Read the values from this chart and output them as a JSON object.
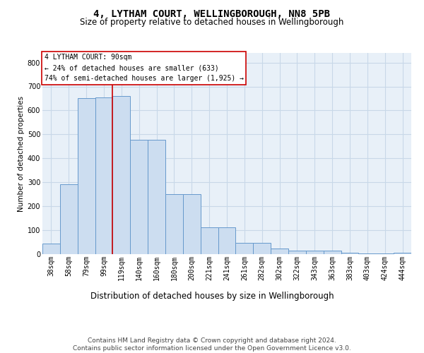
{
  "title": "4, LYTHAM COURT, WELLINGBOROUGH, NN8 5PB",
  "subtitle": "Size of property relative to detached houses in Wellingborough",
  "xlabel": "Distribution of detached houses by size in Wellingborough",
  "ylabel": "Number of detached properties",
  "categories": [
    "38sqm",
    "58sqm",
    "79sqm",
    "99sqm",
    "119sqm",
    "140sqm",
    "160sqm",
    "180sqm",
    "200sqm",
    "221sqm",
    "241sqm",
    "261sqm",
    "282sqm",
    "302sqm",
    "322sqm",
    "343sqm",
    "363sqm",
    "383sqm",
    "403sqm",
    "424sqm",
    "444sqm"
  ],
  "values": [
    43,
    293,
    650,
    655,
    660,
    477,
    477,
    250,
    250,
    113,
    113,
    48,
    48,
    25,
    14,
    14,
    14,
    7,
    3,
    3,
    7
  ],
  "bar_color": "#ccddf0",
  "bar_edge_color": "#6699cc",
  "grid_color": "#c8d8e8",
  "vline_color": "#cc0000",
  "vline_x": 3.5,
  "annotation_text": "4 LYTHAM COURT: 90sqm\n← 24% of detached houses are smaller (633)\n74% of semi-detached houses are larger (1,925) →",
  "annotation_box_edgecolor": "#cc0000",
  "ylim": [
    0,
    840
  ],
  "yticks": [
    0,
    100,
    200,
    300,
    400,
    500,
    600,
    700,
    800
  ],
  "bg_color": "#e8f0f8",
  "footer_text": "Contains HM Land Registry data © Crown copyright and database right 2024.\nContains public sector information licensed under the Open Government Licence v3.0.",
  "title_fontsize": 10,
  "subtitle_fontsize": 8.5,
  "xlabel_fontsize": 8.5,
  "ylabel_fontsize": 7.5,
  "tick_fontsize": 7,
  "annotation_fontsize": 7,
  "footer_fontsize": 6.5
}
